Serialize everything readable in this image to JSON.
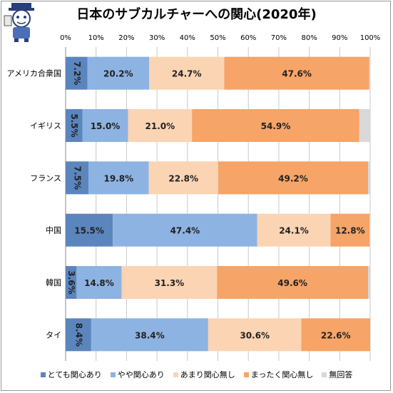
{
  "chart_data": {
    "type": "bar",
    "orientation": "horizontal",
    "stacked": "100%",
    "title": "日本のサブカルチャーへの関心(2020年)",
    "xlim": [
      0,
      100
    ],
    "x_ticks": [
      "0%",
      "10%",
      "20%",
      "30%",
      "40%",
      "50%",
      "60%",
      "70%",
      "80%",
      "90%",
      "100%"
    ],
    "grid": true,
    "legend_position": "bottom",
    "categories": [
      "アメリカ合衆国",
      "イギリス",
      "フランス",
      "中国",
      "韓国",
      "タイ"
    ],
    "series": [
      {
        "name": "とても関心あり",
        "color": "#5b85bd",
        "values": [
          7.2,
          5.5,
          7.5,
          15.5,
          3.6,
          8.4
        ],
        "labels": [
          "7.2%",
          "5.5%",
          "7.5%",
          "15.5%",
          "3.6%",
          "8.4%"
        ],
        "vertical_label": [
          true,
          true,
          true,
          false,
          true,
          true
        ]
      },
      {
        "name": "やや関心あり",
        "color": "#8db3e2",
        "values": [
          20.2,
          15.0,
          19.8,
          47.4,
          14.8,
          38.4
        ],
        "labels": [
          "20.2%",
          "15.0%",
          "19.8%",
          "47.4%",
          "14.8%",
          "38.4%"
        ]
      },
      {
        "name": "あまり関心無し",
        "color": "#fbd4b4",
        "values": [
          24.7,
          21.0,
          22.8,
          24.1,
          31.3,
          30.6
        ],
        "labels": [
          "24.7%",
          "21.0%",
          "22.8%",
          "24.1%",
          "31.3%",
          "30.6%"
        ]
      },
      {
        "name": "まったく関心無し",
        "color": "#f6a467",
        "values": [
          47.6,
          54.9,
          49.2,
          12.8,
          49.6,
          22.6
        ],
        "labels": [
          "47.6%",
          "54.9%",
          "49.2%",
          "12.8%",
          "49.6%",
          "22.6%"
        ]
      },
      {
        "name": "無回答",
        "color": "#d9d9d9",
        "values": [
          0.4,
          3.6,
          0.7,
          0.2,
          0.7,
          0.0
        ],
        "labels": [
          "",
          "",
          "",
          "",
          "",
          ""
        ]
      }
    ]
  }
}
